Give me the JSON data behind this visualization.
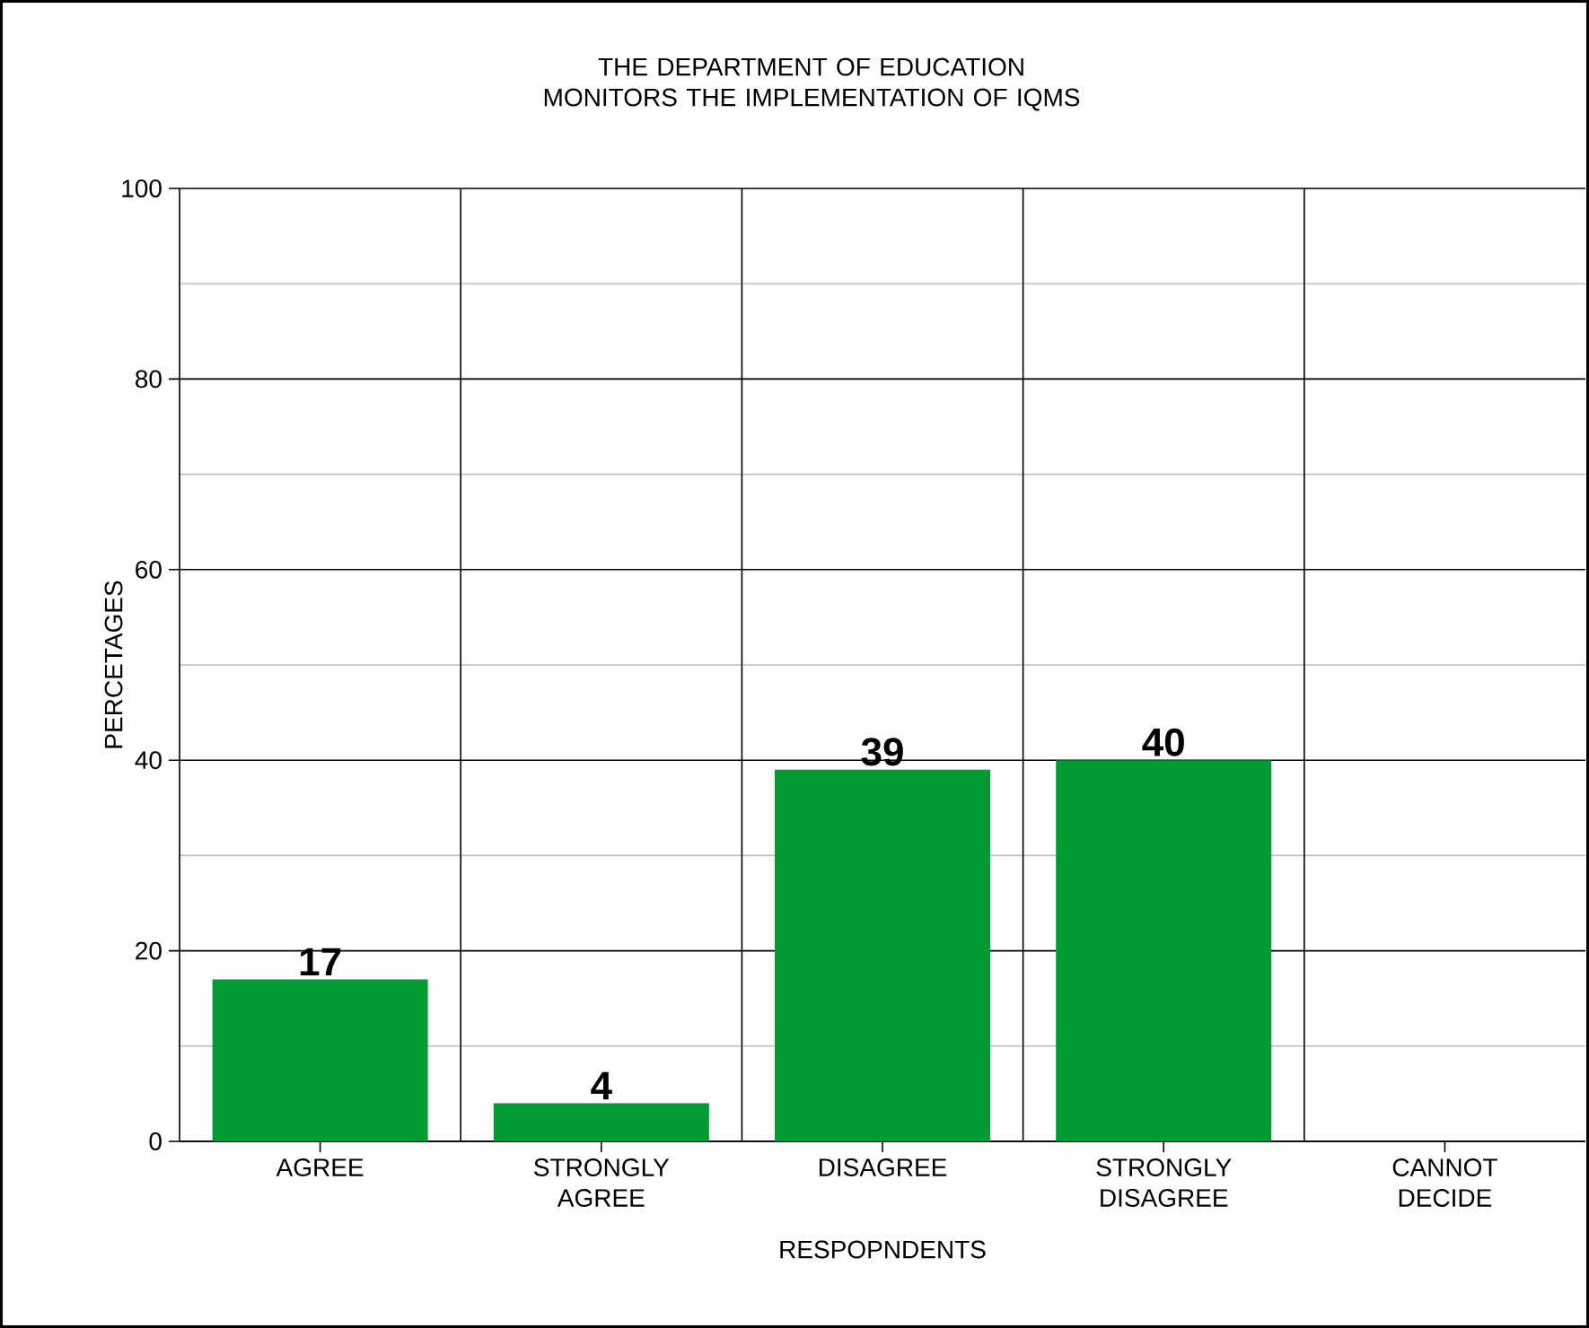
{
  "chart_data": {
    "type": "bar",
    "title": "THE DEPARTMENT OF EDUCATION MONITORS THE IMPLEMENTATION OF IQMS",
    "xlabel": "RESPOPNDENTS",
    "ylabel": "PERCETAGES",
    "categories": [
      "AGREE",
      "STRONGLY AGREE",
      "DISAGREE",
      "STRONGLY DISAGREE",
      "CANNOT DECIDE"
    ],
    "values": [
      17,
      4,
      39,
      40,
      0
    ],
    "value_labels": [
      "17",
      "4",
      "39",
      "40",
      null
    ],
    "color": "#009933",
    "ylim": [
      0,
      100
    ],
    "yticks": [
      0,
      20,
      40,
      60,
      80,
      100
    ],
    "grid": true
  }
}
